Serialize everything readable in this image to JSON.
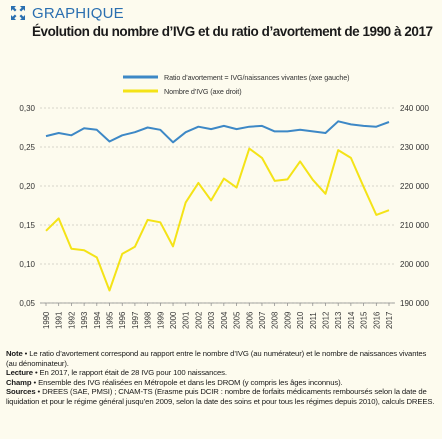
{
  "header": {
    "kicker": "GRAPHIQUE",
    "title": "Évolution du nombre d’IVG et du ratio d’avortement de 1990 à 2017",
    "icon": "expand-arrows-icon"
  },
  "chart_data": {
    "type": "line",
    "title": "Évolution du nombre d’IVG et du ratio d’avortement de 1990 à 2017",
    "categories": [
      "1990",
      "1991",
      "1992",
      "1993",
      "1994",
      "1995",
      "1996",
      "1997",
      "1998",
      "1999",
      "2000",
      "2001",
      "2002",
      "2003",
      "2004",
      "2005",
      "2006",
      "2007",
      "2008",
      "2009",
      "2010",
      "2011",
      "2012",
      "2013",
      "2014",
      "2015",
      "2016",
      "2017"
    ],
    "series": [
      {
        "name": "Ratio d’avortement = IVG/naissances vivantes (axe gauche)",
        "axis": "left",
        "color": "#3d88c6",
        "values": [
          0.264,
          0.268,
          0.265,
          0.274,
          0.272,
          0.257,
          0.265,
          0.269,
          0.275,
          0.272,
          0.256,
          0.269,
          0.276,
          0.273,
          0.277,
          0.273,
          0.276,
          0.277,
          0.27,
          0.27,
          0.272,
          0.27,
          0.268,
          0.283,
          0.279,
          0.277,
          0.276,
          0.282
        ]
      },
      {
        "name": "Nombre d’IVG (axe droit)",
        "axis": "right",
        "color": "#f4e317",
        "values": [
          208500,
          211700,
          203900,
          203500,
          201700,
          193200,
          202600,
          204400,
          211300,
          210700,
          204500,
          215800,
          220800,
          216300,
          221900,
          219600,
          229600,
          227200,
          221300,
          221700,
          226300,
          221600,
          218000,
          229200,
          227200,
          219800,
          212600,
          213800
        ]
      }
    ],
    "ylim_left": [
      0.05,
      0.3
    ],
    "yticks_left": [
      "0,05",
      "0,10",
      "0,15",
      "0,20",
      "0,25",
      "0,30"
    ],
    "ylim_right": [
      190000,
      240000
    ],
    "yticks_right": [
      "190 000",
      "200 000",
      "210 000",
      "220 000",
      "230 000",
      "240 000"
    ],
    "grid": true,
    "legend_position": "top-center"
  },
  "notes": [
    {
      "label": "Note",
      "text": "Le ratio d’avortement correspond au rapport entre le nombre d’IVG (au numérateur) et le nombre de naissances vivantes (au dénominateur)."
    },
    {
      "label": "Lecture",
      "text": "En 2017, le rapport était de 28 IVG pour 100 naissances."
    },
    {
      "label": "Champ",
      "text": "Ensemble des IVG réalisées en Métropole et dans les DROM (y compris les âges inconnus)."
    },
    {
      "label": "Sources",
      "text": "DREES (SAE, PMSI) ; CNAM-TS (Erasme puis DCIR : nombre de forfaits médicaments remboursés selon la date de liquidation et pour le régime général jusqu’en 2009, selon la date des soins et pour tous les régimes depuis 2010), calculs DREES."
    }
  ]
}
